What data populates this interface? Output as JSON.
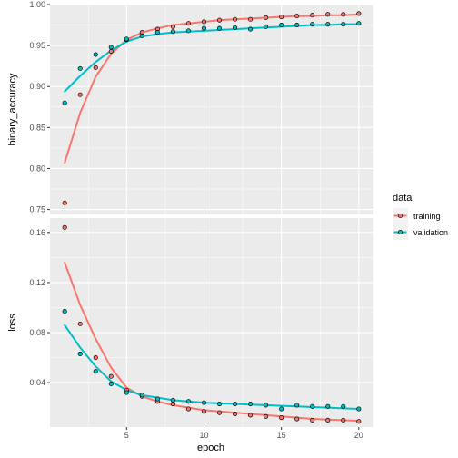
{
  "chart_data": {
    "type": "line",
    "x_label": "epoch",
    "legend": {
      "title": "data",
      "position": "right",
      "entries": [
        {
          "name": "training",
          "color": "#F8766D"
        },
        {
          "name": "validation",
          "color": "#00BFC4"
        }
      ]
    },
    "x_range": [
      0.05,
      20.95
    ],
    "x_ticks": [
      5,
      10,
      15,
      20
    ],
    "x_tick_labels": [
      "5",
      "10",
      "15",
      "20"
    ],
    "panels": [
      {
        "ylabel": "binary_accuracy",
        "ylim": [
          0.744,
          1.0
        ],
        "y_ticks": [
          0.75,
          0.8,
          0.85,
          0.9,
          0.95,
          1.0
        ],
        "y_tick_labels": [
          "0.75",
          "0.80",
          "0.85",
          "0.90",
          "0.95",
          "1.00"
        ],
        "series": [
          {
            "name": "training",
            "color": "#F8766D",
            "points": [
              [
                1,
                0.758
              ],
              [
                2,
                0.89
              ],
              [
                3,
                0.923
              ],
              [
                4,
                0.943
              ],
              [
                5,
                0.957
              ],
              [
                6,
                0.966
              ],
              [
                7,
                0.97
              ],
              [
                8,
                0.973
              ],
              [
                9,
                0.977
              ],
              [
                10,
                0.979
              ],
              [
                11,
                0.981
              ],
              [
                12,
                0.982
              ],
              [
                13,
                0.982
              ],
              [
                14,
                0.984
              ],
              [
                15,
                0.985
              ],
              [
                16,
                0.986
              ],
              [
                17,
                0.987
              ],
              [
                18,
                0.988
              ],
              [
                19,
                0.988
              ],
              [
                20,
                0.989
              ]
            ],
            "smooth": [
              [
                1,
                0.807
              ],
              [
                2,
                0.868
              ],
              [
                3,
                0.912
              ],
              [
                4,
                0.94
              ],
              [
                5,
                0.957
              ],
              [
                6,
                0.966
              ],
              [
                7,
                0.971
              ],
              [
                8,
                0.975
              ],
              [
                9,
                0.977
              ],
              [
                10,
                0.979
              ],
              [
                11,
                0.981
              ],
              [
                12,
                0.982
              ],
              [
                13,
                0.983
              ],
              [
                14,
                0.984
              ],
              [
                15,
                0.985
              ],
              [
                16,
                0.986
              ],
              [
                17,
                0.986
              ],
              [
                18,
                0.987
              ],
              [
                19,
                0.987
              ],
              [
                20,
                0.988
              ]
            ]
          },
          {
            "name": "validation",
            "color": "#00BFC4",
            "points": [
              [
                1,
                0.88
              ],
              [
                2,
                0.922
              ],
              [
                3,
                0.939
              ],
              [
                4,
                0.948
              ],
              [
                5,
                0.958
              ],
              [
                6,
                0.962
              ],
              [
                7,
                0.966
              ],
              [
                8,
                0.967
              ],
              [
                9,
                0.968
              ],
              [
                10,
                0.971
              ],
              [
                11,
                0.971
              ],
              [
                12,
                0.972
              ],
              [
                13,
                0.97
              ],
              [
                14,
                0.973
              ],
              [
                15,
                0.975
              ],
              [
                16,
                0.975
              ],
              [
                17,
                0.976
              ],
              [
                18,
                0.976
              ],
              [
                19,
                0.976
              ],
              [
                20,
                0.977
              ]
            ],
            "smooth": [
              [
                1,
                0.894
              ],
              [
                2,
                0.913
              ],
              [
                3,
                0.93
              ],
              [
                4,
                0.944
              ],
              [
                5,
                0.955
              ],
              [
                6,
                0.961
              ],
              [
                7,
                0.964
              ],
              [
                8,
                0.966
              ],
              [
                9,
                0.967
              ],
              [
                10,
                0.968
              ],
              [
                11,
                0.969
              ],
              [
                12,
                0.97
              ],
              [
                13,
                0.971
              ],
              [
                14,
                0.972
              ],
              [
                15,
                0.973
              ],
              [
                16,
                0.974
              ],
              [
                17,
                0.975
              ],
              [
                18,
                0.975
              ],
              [
                19,
                0.976
              ],
              [
                20,
                0.976
              ]
            ]
          }
        ]
      },
      {
        "ylabel": "loss",
        "ylim": [
          0.0045,
          0.1715
        ],
        "y_ticks": [
          0.04,
          0.08,
          0.12,
          0.16
        ],
        "y_tick_labels": [
          "0.04",
          "0.08",
          "0.12",
          "0.16"
        ],
        "series": [
          {
            "name": "training",
            "color": "#F8766D",
            "points": [
              [
                1,
                0.164
              ],
              [
                2,
                0.087
              ],
              [
                3,
                0.06
              ],
              [
                4,
                0.045
              ],
              [
                5,
                0.034
              ],
              [
                6,
                0.029
              ],
              [
                7,
                0.025
              ],
              [
                8,
                0.023
              ],
              [
                9,
                0.019
              ],
              [
                10,
                0.017
              ],
              [
                11,
                0.016
              ],
              [
                12,
                0.015
              ],
              [
                13,
                0.014
              ],
              [
                14,
                0.013
              ],
              [
                15,
                0.012
              ],
              [
                16,
                0.011
              ],
              [
                17,
                0.01
              ],
              [
                18,
                0.01
              ],
              [
                19,
                0.01
              ],
              [
                20,
                0.009
              ]
            ],
            "smooth": [
              [
                1,
                0.136
              ],
              [
                2,
                0.102
              ],
              [
                3,
                0.075
              ],
              [
                4,
                0.052
              ],
              [
                5,
                0.036
              ],
              [
                6,
                0.029
              ],
              [
                7,
                0.025
              ],
              [
                8,
                0.022
              ],
              [
                9,
                0.02
              ],
              [
                10,
                0.018
              ],
              [
                11,
                0.017
              ],
              [
                12,
                0.016
              ],
              [
                13,
                0.015
              ],
              [
                14,
                0.014
              ],
              [
                15,
                0.013
              ],
              [
                16,
                0.012
              ],
              [
                17,
                0.011
              ],
              [
                18,
                0.0105
              ],
              [
                19,
                0.01
              ],
              [
                20,
                0.0095
              ]
            ]
          },
          {
            "name": "validation",
            "color": "#00BFC4",
            "points": [
              [
                1,
                0.097
              ],
              [
                2,
                0.063
              ],
              [
                3,
                0.049
              ],
              [
                4,
                0.039
              ],
              [
                5,
                0.032
              ],
              [
                6,
                0.03
              ],
              [
                7,
                0.027
              ],
              [
                8,
                0.026
              ],
              [
                9,
                0.025
              ],
              [
                10,
                0.024
              ],
              [
                11,
                0.023
              ],
              [
                12,
                0.023
              ],
              [
                13,
                0.023
              ],
              [
                14,
                0.022
              ],
              [
                15,
                0.019
              ],
              [
                16,
                0.022
              ],
              [
                17,
                0.021
              ],
              [
                18,
                0.021
              ],
              [
                19,
                0.021
              ],
              [
                20,
                0.019
              ]
            ],
            "smooth": [
              [
                1,
                0.086
              ],
              [
                2,
                0.068
              ],
              [
                3,
                0.053
              ],
              [
                4,
                0.041
              ],
              [
                5,
                0.034
              ],
              [
                6,
                0.03
              ],
              [
                7,
                0.028
              ],
              [
                8,
                0.026
              ],
              [
                9,
                0.025
              ],
              [
                10,
                0.024
              ],
              [
                11,
                0.0235
              ],
              [
                12,
                0.023
              ],
              [
                13,
                0.0225
              ],
              [
                14,
                0.022
              ],
              [
                15,
                0.0215
              ],
              [
                16,
                0.021
              ],
              [
                17,
                0.0205
              ],
              [
                18,
                0.02
              ],
              [
                19,
                0.0195
              ],
              [
                20,
                0.019
              ]
            ]
          }
        ]
      }
    ]
  }
}
